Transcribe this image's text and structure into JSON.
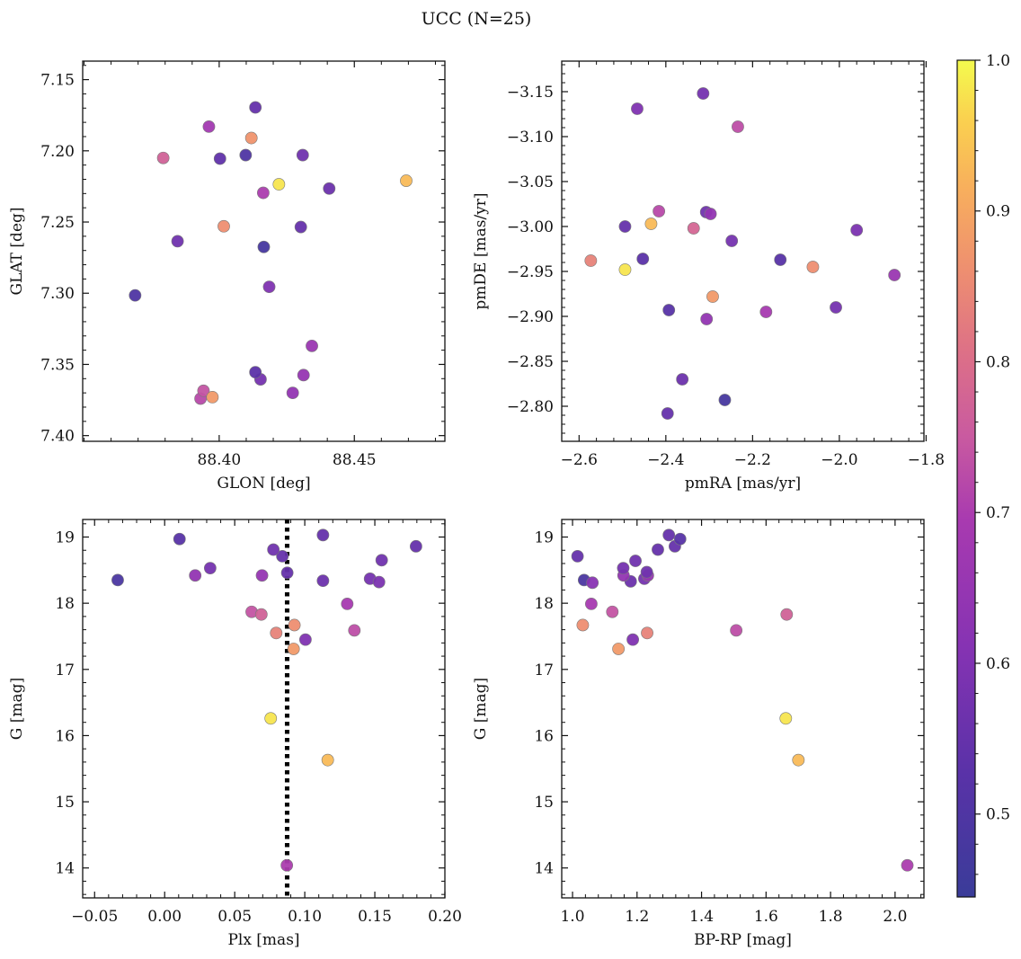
{
  "figure": {
    "title": "UCC (N=25)",
    "colormap": "plasma",
    "colorbar": {
      "min": 0.445,
      "max": 1.0,
      "ticks": [
        "0.5",
        "0.6",
        "0.7",
        "0.8",
        "0.9",
        "1.0"
      ],
      "tick_values": [
        0.5,
        0.6,
        0.7,
        0.8,
        0.9,
        1.0
      ]
    },
    "marker_edge_color": "#7a7a7a"
  },
  "chart_data": [
    {
      "type": "scatter",
      "xlabel": "GLON [deg]",
      "ylabel": "GLAT [deg]",
      "xlim": [
        88.3495,
        88.4835
      ],
      "ylim": [
        7.137,
        7.404
      ],
      "xticks": [
        88.4,
        88.45
      ],
      "xticklabels": [
        "88.40",
        "88.45"
      ],
      "yticks": [
        7.15,
        7.2,
        7.25,
        7.3,
        7.35,
        7.4
      ],
      "yticklabels": [
        "7.15",
        "7.20",
        "7.25",
        "7.30",
        "7.35",
        "7.40"
      ],
      "points": [
        {
          "x": 88.3931,
          "y": 7.374,
          "c": 0.72
        },
        {
          "x": 88.3942,
          "y": 7.3685,
          "c": 0.74
        },
        {
          "x": 88.3975,
          "y": 7.373,
          "c": 0.88
        },
        {
          "x": 88.4153,
          "y": 7.3605,
          "c": 0.58
        },
        {
          "x": 88.4134,
          "y": 7.3555,
          "c": 0.53
        },
        {
          "x": 88.4272,
          "y": 7.37,
          "c": 0.64
        },
        {
          "x": 88.4312,
          "y": 7.3575,
          "c": 0.65
        },
        {
          "x": 88.4343,
          "y": 7.337,
          "c": 0.66
        },
        {
          "x": 88.3689,
          "y": 7.3015,
          "c": 0.5
        },
        {
          "x": 88.4185,
          "y": 7.2955,
          "c": 0.6
        },
        {
          "x": 88.4165,
          "y": 7.2675,
          "c": 0.48
        },
        {
          "x": 88.3846,
          "y": 7.2635,
          "c": 0.57
        },
        {
          "x": 88.4017,
          "y": 7.253,
          "c": 0.86
        },
        {
          "x": 88.4302,
          "y": 7.2535,
          "c": 0.55
        },
        {
          "x": 88.4163,
          "y": 7.2295,
          "c": 0.7
        },
        {
          "x": 88.4221,
          "y": 7.2235,
          "c": 0.98
        },
        {
          "x": 88.4407,
          "y": 7.2265,
          "c": 0.56
        },
        {
          "x": 88.4692,
          "y": 7.221,
          "c": 0.93
        },
        {
          "x": 88.3793,
          "y": 7.205,
          "c": 0.77
        },
        {
          "x": 88.4003,
          "y": 7.2055,
          "c": 0.54
        },
        {
          "x": 88.4098,
          "y": 7.203,
          "c": 0.5
        },
        {
          "x": 88.4309,
          "y": 7.203,
          "c": 0.57
        },
        {
          "x": 88.4119,
          "y": 7.191,
          "c": 0.87
        },
        {
          "x": 88.3962,
          "y": 7.183,
          "c": 0.68
        },
        {
          "x": 88.4134,
          "y": 7.1695,
          "c": 0.55
        }
      ]
    },
    {
      "type": "scatter",
      "xlabel": "pmRA [mas/yr]",
      "ylabel": "pmDE [mas/yr]",
      "xlim": [
        -2.64,
        -1.805
      ],
      "ylim": [
        -3.184,
        -2.761
      ],
      "xticks": [
        -2.6,
        -2.4,
        -2.2,
        -2.0,
        -1.8
      ],
      "xticklabels": [
        "−2.6",
        "−2.4",
        "−2.2",
        "−2.0",
        "−1.8"
      ],
      "yticks": [
        -3.15,
        -3.1,
        -3.05,
        -3.0,
        -2.95,
        -2.9,
        -2.85,
        -2.8
      ],
      "yticklabels": [
        "−3.15",
        "−3.10",
        "−3.05",
        "−3.00",
        "−2.95",
        "−2.90",
        "−2.85",
        "−2.80"
      ],
      "points": [
        {
          "x": -2.396,
          "y": -2.792,
          "c": 0.55
        },
        {
          "x": -2.264,
          "y": -2.807,
          "c": 0.48
        },
        {
          "x": -2.362,
          "y": -2.83,
          "c": 0.56
        },
        {
          "x": -2.306,
          "y": -2.897,
          "c": 0.64
        },
        {
          "x": -2.393,
          "y": -2.907,
          "c": 0.52
        },
        {
          "x": -2.169,
          "y": -2.905,
          "c": 0.69
        },
        {
          "x": -2.008,
          "y": -2.91,
          "c": 0.58
        },
        {
          "x": -2.292,
          "y": -2.922,
          "c": 0.88
        },
        {
          "x": -2.573,
          "y": -2.962,
          "c": 0.84
        },
        {
          "x": -2.494,
          "y": -2.952,
          "c": 0.98
        },
        {
          "x": -2.453,
          "y": -2.964,
          "c": 0.53
        },
        {
          "x": -2.136,
          "y": -2.963,
          "c": 0.52
        },
        {
          "x": -2.061,
          "y": -2.955,
          "c": 0.86
        },
        {
          "x": -1.873,
          "y": -2.946,
          "c": 0.66
        },
        {
          "x": -2.248,
          "y": -2.984,
          "c": 0.58
        },
        {
          "x": -2.494,
          "y": -3.0,
          "c": 0.55
        },
        {
          "x": -2.434,
          "y": -3.003,
          "c": 0.93
        },
        {
          "x": -2.336,
          "y": -2.998,
          "c": 0.78
        },
        {
          "x": -1.96,
          "y": -2.996,
          "c": 0.59
        },
        {
          "x": -2.416,
          "y": -3.017,
          "c": 0.72
        },
        {
          "x": -2.307,
          "y": -3.016,
          "c": 0.57
        },
        {
          "x": -2.297,
          "y": -3.014,
          "c": 0.64
        },
        {
          "x": -2.234,
          "y": -3.111,
          "c": 0.73
        },
        {
          "x": -2.466,
          "y": -3.131,
          "c": 0.6
        },
        {
          "x": -2.314,
          "y": -3.148,
          "c": 0.58
        }
      ]
    },
    {
      "type": "scatter",
      "xlabel": "Plx [mas]",
      "ylabel": "G [mag]",
      "xlim": [
        -0.0585,
        0.2
      ],
      "ylim": [
        19.265,
        13.548
      ],
      "xticks": [
        -0.05,
        0.0,
        0.05,
        0.1,
        0.15,
        0.2
      ],
      "xticklabels": [
        "−0.05",
        "0.00",
        "0.05",
        "0.10",
        "0.15",
        "0.20"
      ],
      "yticks": [
        14,
        15,
        16,
        17,
        18,
        19
      ],
      "yticklabels": [
        "14",
        "15",
        "16",
        "17",
        "18",
        "19"
      ],
      "reference_line": {
        "x": 0.0874,
        "style": "dotted",
        "color": "#000000"
      },
      "points": [
        {
          "x": 0.0872,
          "y": 14.04,
          "c": 0.7
        },
        {
          "x": 0.1164,
          "y": 15.63,
          "c": 0.93
        },
        {
          "x": 0.0757,
          "y": 16.26,
          "c": 0.98
        },
        {
          "x": 0.092,
          "y": 17.31,
          "c": 0.88
        },
        {
          "x": 0.1005,
          "y": 17.45,
          "c": 0.6
        },
        {
          "x": 0.0796,
          "y": 17.55,
          "c": 0.84
        },
        {
          "x": 0.0926,
          "y": 17.67,
          "c": 0.86
        },
        {
          "x": 0.1354,
          "y": 17.59,
          "c": 0.73
        },
        {
          "x": 0.0621,
          "y": 17.87,
          "c": 0.74
        },
        {
          "x": 0.069,
          "y": 17.83,
          "c": 0.77
        },
        {
          "x": 0.1303,
          "y": 17.99,
          "c": 0.69
        },
        {
          "x": -0.0335,
          "y": 18.35,
          "c": 0.49
        },
        {
          "x": 0.0218,
          "y": 18.42,
          "c": 0.64
        },
        {
          "x": 0.0325,
          "y": 18.53,
          "c": 0.58
        },
        {
          "x": 0.0695,
          "y": 18.42,
          "c": 0.65
        },
        {
          "x": 0.0875,
          "y": 18.46,
          "c": 0.55
        },
        {
          "x": 0.113,
          "y": 18.34,
          "c": 0.56
        },
        {
          "x": 0.1466,
          "y": 18.37,
          "c": 0.58
        },
        {
          "x": 0.153,
          "y": 18.32,
          "c": 0.59
        },
        {
          "x": 0.084,
          "y": 18.71,
          "c": 0.55
        },
        {
          "x": 0.0776,
          "y": 18.81,
          "c": 0.57
        },
        {
          "x": 0.1549,
          "y": 18.65,
          "c": 0.57
        },
        {
          "x": 0.1794,
          "y": 18.86,
          "c": 0.55
        },
        {
          "x": 0.0106,
          "y": 18.97,
          "c": 0.52
        },
        {
          "x": 0.113,
          "y": 19.03,
          "c": 0.55
        }
      ]
    },
    {
      "type": "scatter",
      "xlabel": "BP-RP [mag]",
      "ylabel": "G [mag]",
      "xlim": [
        0.9665,
        2.0895
      ],
      "ylim": [
        19.265,
        13.548
      ],
      "xticks": [
        1.0,
        1.2,
        1.4,
        1.6,
        1.8,
        2.0
      ],
      "xticklabels": [
        "1.0",
        "1.2",
        "1.4",
        "1.6",
        "1.8",
        "2.0"
      ],
      "yticks": [
        14,
        15,
        16,
        17,
        18,
        19
      ],
      "yticklabels": [
        "14",
        "15",
        "16",
        "17",
        "18",
        "19"
      ],
      "points": [
        {
          "x": 2.038,
          "y": 14.04,
          "c": 0.7
        },
        {
          "x": 1.7003,
          "y": 15.63,
          "c": 0.93
        },
        {
          "x": 1.6612,
          "y": 16.26,
          "c": 0.98
        },
        {
          "x": 1.1424,
          "y": 17.31,
          "c": 0.88
        },
        {
          "x": 1.1869,
          "y": 17.45,
          "c": 0.6
        },
        {
          "x": 1.2314,
          "y": 17.55,
          "c": 0.84
        },
        {
          "x": 1.5075,
          "y": 17.59,
          "c": 0.73
        },
        {
          "x": 1.0318,
          "y": 17.67,
          "c": 0.86
        },
        {
          "x": 1.664,
          "y": 17.83,
          "c": 0.77
        },
        {
          "x": 1.1234,
          "y": 17.87,
          "c": 0.74
        },
        {
          "x": 1.0582,
          "y": 17.99,
          "c": 0.69
        },
        {
          "x": 1.0358,
          "y": 18.35,
          "c": 0.49
        },
        {
          "x": 1.0617,
          "y": 18.31,
          "c": 0.62
        },
        {
          "x": 1.1803,
          "y": 18.33,
          "c": 0.56
        },
        {
          "x": 1.2227,
          "y": 18.37,
          "c": 0.58
        },
        {
          "x": 1.1582,
          "y": 18.42,
          "c": 0.64
        },
        {
          "x": 1.2335,
          "y": 18.42,
          "c": 0.65
        },
        {
          "x": 1.2302,
          "y": 18.47,
          "c": 0.57
        },
        {
          "x": 1.1572,
          "y": 18.53,
          "c": 0.58
        },
        {
          "x": 1.1951,
          "y": 18.64,
          "c": 0.57
        },
        {
          "x": 1.0155,
          "y": 18.71,
          "c": 0.55
        },
        {
          "x": 1.2646,
          "y": 18.81,
          "c": 0.55
        },
        {
          "x": 1.3174,
          "y": 18.86,
          "c": 0.55
        },
        {
          "x": 1.3336,
          "y": 18.97,
          "c": 0.52
        },
        {
          "x": 1.2987,
          "y": 19.03,
          "c": 0.55
        }
      ]
    }
  ]
}
